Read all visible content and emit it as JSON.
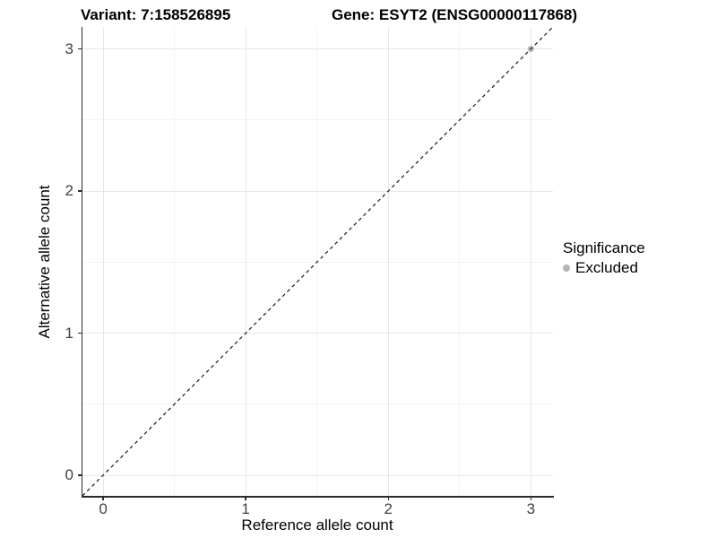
{
  "header": {
    "title_left": "Variant: 7:158526895",
    "title_right": "Gene: ESYT2 (ENSG00000117868)"
  },
  "legend": {
    "title": "Significance",
    "items": [
      {
        "label": "Excluded",
        "color": "#b5b5b5"
      }
    ]
  },
  "chart_data": {
    "type": "scatter",
    "title": "Variant: 7:158526895  |  Gene: ESYT2 (ENSG00000117868)",
    "xlabel": "Reference allele count",
    "ylabel": "Alternative allele count",
    "xlim": [
      -0.145,
      3.155
    ],
    "ylim": [
      -0.145,
      3.155
    ],
    "x_ticks": [
      0,
      1,
      2,
      3
    ],
    "x_tick_labels": [
      "0",
      "1",
      "2",
      "3"
    ],
    "y_ticks": [
      0,
      1,
      2,
      3
    ],
    "y_tick_labels": [
      "0",
      "1",
      "2",
      "3"
    ],
    "x_minor_ticks": [
      0.5,
      1.5,
      2.5
    ],
    "y_minor_ticks": [
      0.5,
      1.5,
      2.5
    ],
    "grid": "major+minor",
    "grid_major_color": "#e6e6e6",
    "grid_minor_color": "#f3f3f3",
    "axis_line_color": "#2b2b2b",
    "legend_title": "Significance",
    "legend_position": "right",
    "reference_line": {
      "type": "identity",
      "slope": 1,
      "intercept": 0,
      "style": "dashed",
      "color": "#1a1a1a"
    },
    "series": [
      {
        "name": "Excluded",
        "color": "#b5b5b5",
        "points": [
          {
            "x": 3,
            "y": 3
          }
        ]
      }
    ]
  }
}
